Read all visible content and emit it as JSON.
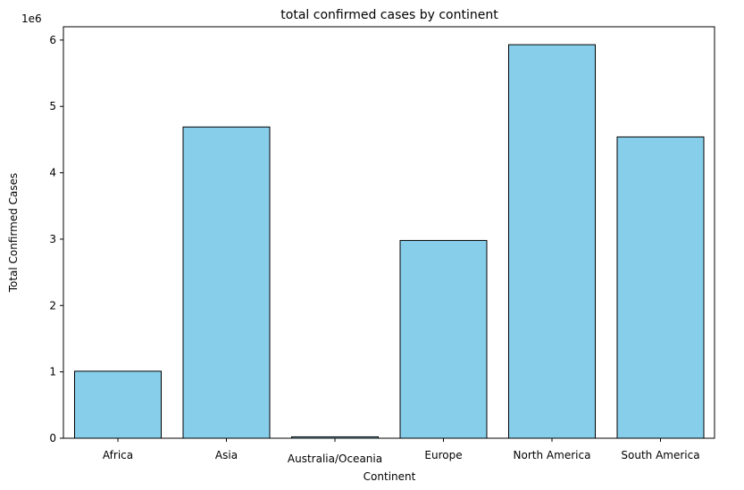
{
  "chart_data": {
    "type": "bar",
    "title": "total confirmed cases by continent",
    "xlabel": "Continent",
    "ylabel": "Total Confirmed Cases",
    "scale_label": "1e6",
    "categories": [
      "Africa",
      "Asia",
      "Australia/Oceania",
      "Europe",
      "North America",
      "South America"
    ],
    "values": [
      1010000,
      4690000,
      21000,
      2980000,
      5930000,
      4540000
    ],
    "ylim": [
      0,
      6200000
    ],
    "yticks": [
      0,
      1,
      2,
      3,
      4,
      5,
      6
    ],
    "ytick_multiplier": 1000000,
    "grid": false,
    "bar_color": "#87CEEB",
    "edge_color": "#000000"
  }
}
